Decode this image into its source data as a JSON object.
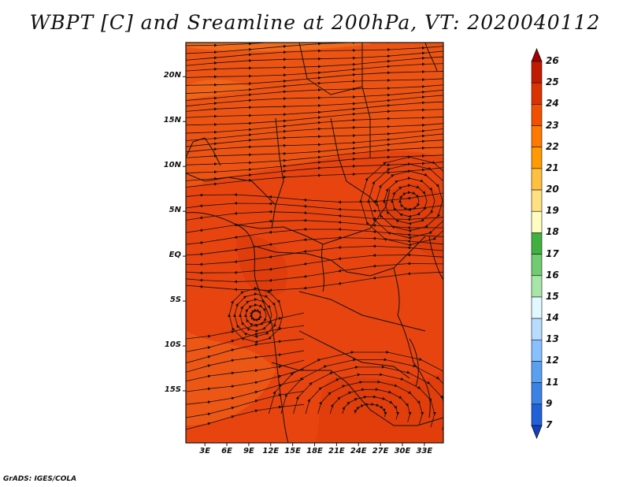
{
  "title": "WBPT [C] and Sreamline at 200hPa, VT: 2020040112",
  "credit": "GrADS: IGES/COLA",
  "map": {
    "field": "Wet-bulb potential temperature",
    "level": "200hPa",
    "lat_ticks": [
      {
        "value": 20,
        "label": "20N"
      },
      {
        "value": 15,
        "label": "15N"
      },
      {
        "value": 10,
        "label": "10N"
      },
      {
        "value": 5,
        "label": "5N"
      },
      {
        "value": 0,
        "label": "EQ"
      },
      {
        "value": -5,
        "label": "5S"
      },
      {
        "value": -10,
        "label": "10S"
      },
      {
        "value": -15,
        "label": "15S"
      }
    ],
    "lon_ticks": [
      {
        "value": 3,
        "label": "3E"
      },
      {
        "value": 6,
        "label": "6E"
      },
      {
        "value": 9,
        "label": "9E"
      },
      {
        "value": 12,
        "label": "12E"
      },
      {
        "value": 15,
        "label": "15E"
      },
      {
        "value": 18,
        "label": "18E"
      },
      {
        "value": 21,
        "label": "21E"
      },
      {
        "value": 24,
        "label": "24E"
      },
      {
        "value": 27,
        "label": "27E"
      },
      {
        "value": 30,
        "label": "30E"
      },
      {
        "value": 33,
        "label": "33E"
      }
    ]
  },
  "colorbar": {
    "labels": [
      "26",
      "25",
      "24",
      "23",
      "22",
      "21",
      "20",
      "19",
      "18",
      "17",
      "16",
      "15",
      "14",
      "13",
      "12",
      "11",
      "9",
      "7"
    ],
    "colors": [
      "#a50000",
      "#c21a00",
      "#dc3200",
      "#f05000",
      "#ff7800",
      "#ff9a00",
      "#ffc040",
      "#ffe080",
      "#fffcc0",
      "#40b040",
      "#70cc70",
      "#a8e6a8",
      "#e0f8ff",
      "#b8dcff",
      "#88c0ff",
      "#5aa0f0",
      "#3a82e6",
      "#2060d8",
      "#1040c0"
    ]
  }
}
